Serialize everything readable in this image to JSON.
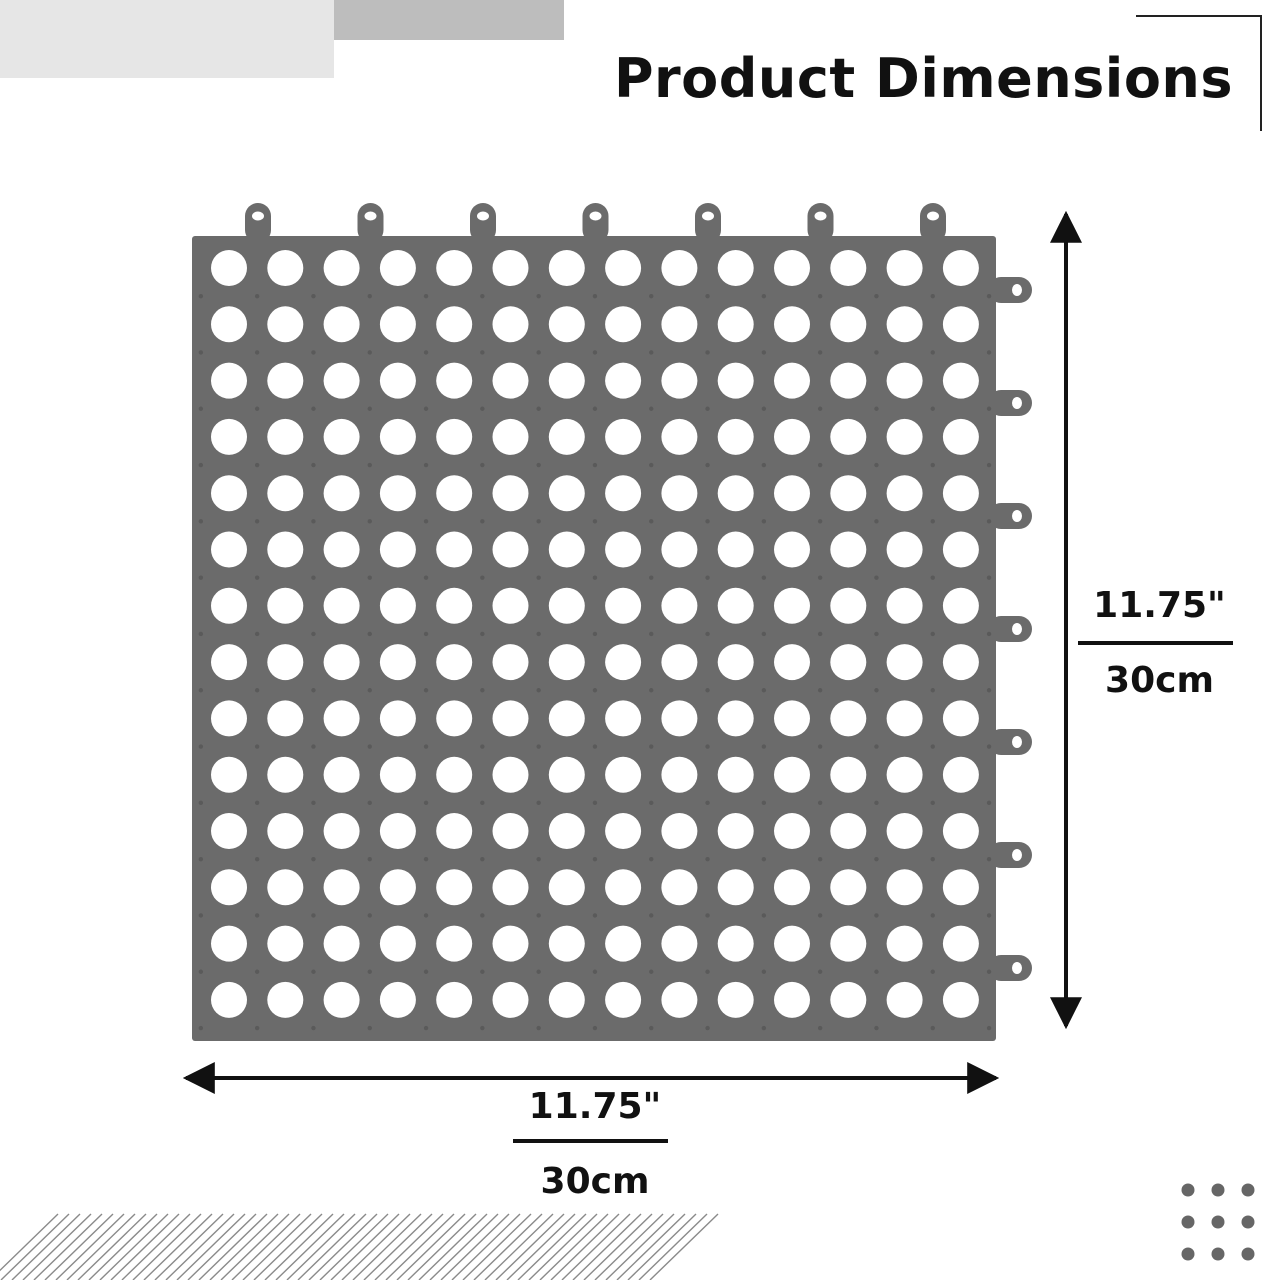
{
  "header": {
    "title": "Product Dimensions"
  },
  "product": {
    "name": "perforated-floor-mat-tile",
    "color": "#6b6b6b",
    "hole_rows": 14,
    "hole_columns": 14,
    "top_connector_count": 7,
    "side_connector_count": 7
  },
  "dimensions": {
    "width_imperial": "11.75\"",
    "width_metric": "30cm",
    "height_imperial": "11.75\"",
    "height_metric": "30cm"
  },
  "decor": {
    "accent_light": "#e6e6e6",
    "accent_dark": "#bdbdbd",
    "ink": "#111111"
  }
}
